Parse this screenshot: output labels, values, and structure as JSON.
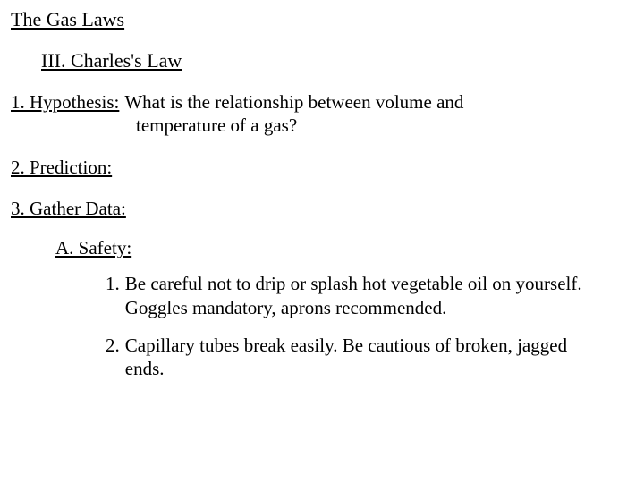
{
  "colors": {
    "background": "#ffffff",
    "text": "#000000"
  },
  "typography": {
    "font_family": "Times New Roman",
    "base_fontsize_pt": 16,
    "line_height": 1.25
  },
  "title": "The Gas Laws",
  "section": {
    "number": "III.",
    "label": "Charles's Law",
    "full": "III.  Charles's Law"
  },
  "items": {
    "hypothesis": {
      "label": "1.  Hypothesis:",
      "text_l1": "What is the relationship between volume and",
      "text_l2": "temperature of a gas?"
    },
    "prediction": {
      "label": "2.  Prediction:"
    },
    "gather": {
      "label": "3.  Gather Data:"
    }
  },
  "safety": {
    "label": "A.  Safety:",
    "entries": [
      {
        "num": "1.",
        "text": "Be careful not to drip or splash hot vegetable oil on yourself.  Goggles mandatory, aprons recommended."
      },
      {
        "num": "2.",
        "text": "Capillary tubes break easily.  Be cautious of  broken, jagged ends."
      }
    ]
  }
}
